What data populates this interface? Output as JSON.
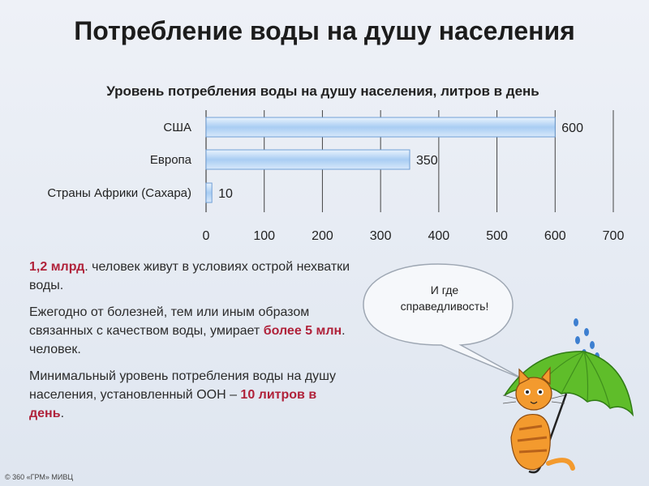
{
  "page_title": "Потребление воды на душу населения",
  "chart_data": {
    "type": "bar",
    "orientation": "horizontal",
    "title": "Уровень потребления воды на душу населения, литров в день",
    "categories": [
      "США",
      "Европа",
      "Страны Африки (Сахара)"
    ],
    "values": [
      600,
      350,
      10
    ],
    "xlim": [
      0,
      700
    ],
    "xticks": [
      "0",
      "100",
      "200",
      "300",
      "400",
      "500",
      "600",
      "700"
    ],
    "grid": true,
    "colors": {
      "bar_main": "#a9cdf3",
      "bar_edge": "#6f9fd6",
      "grid": "#444444"
    }
  },
  "facts": [
    {
      "hl": "1,2 млрд",
      "after": ". человек живут в условиях острой нехватки воды."
    },
    {
      "before": "Ежегодно от болезней, тем или иным образом связанных с качеством воды, умирает ",
      "hl": "более 5 млн",
      "after": ". человек."
    },
    {
      "before": "Минимальный уровень потребления воды на душу населения, установленный ООН – ",
      "hl": "10 литров в день",
      "after": "."
    }
  ],
  "bubble_line1": "И где",
  "bubble_line2": "справедливость!",
  "copyright": "© 360 «ГРМ» МИВЦ",
  "colors": {
    "highlight": "#b0223a",
    "umbrella": "#5fbd2a",
    "cat": "#f39a2e",
    "raindrops": "#3d7fd0"
  }
}
